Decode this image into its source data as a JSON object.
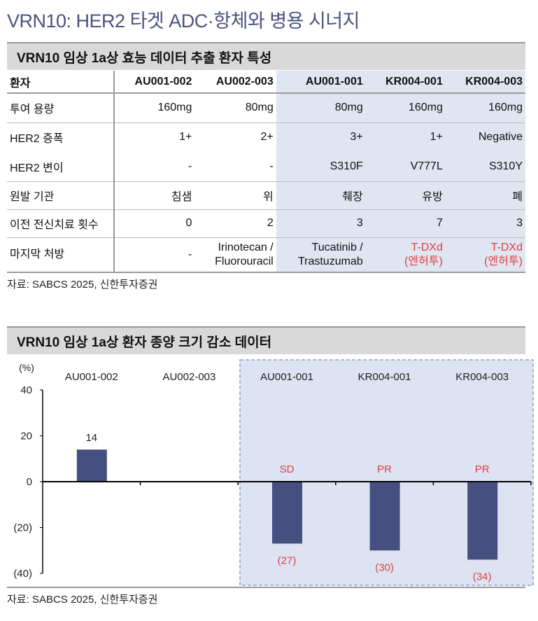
{
  "title": "VRN10: HER2 타겟 ADC·항체와 병용 시너지",
  "table1": {
    "title": "VRN10 임상 1a상 효능 데이터 추출 환자 특성",
    "headers": [
      "환자",
      "AU001-002",
      "AU002-003",
      "AU001-001",
      "KR004-001",
      "KR004-003"
    ],
    "rows": [
      {
        "label": "투여 용량",
        "values": [
          "160mg",
          "80mg",
          "80mg",
          "160mg",
          "160mg"
        ]
      },
      {
        "label": "HER2 증폭",
        "values": [
          "1+",
          "2+",
          "3+",
          "1+",
          "Negative"
        ]
      },
      {
        "label": "HER2 변이",
        "values": [
          "-",
          "-",
          "S310F",
          "V777L",
          "S310Y"
        ]
      },
      {
        "label": "원발 기관",
        "values": [
          "침샘",
          "위",
          "췌장",
          "유방",
          "폐"
        ]
      },
      {
        "label": "이전 전신치료 횟수",
        "values": [
          "0",
          "2",
          "3",
          "7",
          "3"
        ]
      },
      {
        "label": "마지막 처방",
        "values": [
          [
            "-"
          ],
          [
            "Irinotecan /",
            "Fluorouracil"
          ],
          [
            "Tucatinib /",
            "Trastuzumab"
          ],
          [
            "T-DXd",
            "(엔허투)"
          ],
          [
            "T-DXd",
            "(엔허투)"
          ]
        ]
      }
    ],
    "highlight_color": "#dfe6f2",
    "red": "#e04040",
    "source": "자료: SABCS 2025, 신한투자증권"
  },
  "chart_data": {
    "type": "bar",
    "title": "VRN10 임상 1a상 환자 종양 크기 감소 데이터",
    "ylabel": "(%)",
    "categories": [
      "AU001-002",
      "AU002-003",
      "AU001-001",
      "KR004-001",
      "KR004-003"
    ],
    "values": [
      14,
      null,
      -27,
      -30,
      -34
    ],
    "data_labels": [
      "14",
      "",
      "(27)",
      "(30)",
      "(34)"
    ],
    "response_labels": [
      "",
      "",
      "SD",
      "PR",
      "PR"
    ],
    "ylim": [
      -40,
      40
    ],
    "yticks": [
      40,
      20,
      0,
      -20,
      -40
    ],
    "ytick_labels": [
      "40",
      "20",
      "0",
      "(20)",
      "(40)"
    ],
    "bar_color": "#465080",
    "highlight_color": "#dde3f3",
    "source": "자료: SABCS 2025, 신한투자증권"
  }
}
